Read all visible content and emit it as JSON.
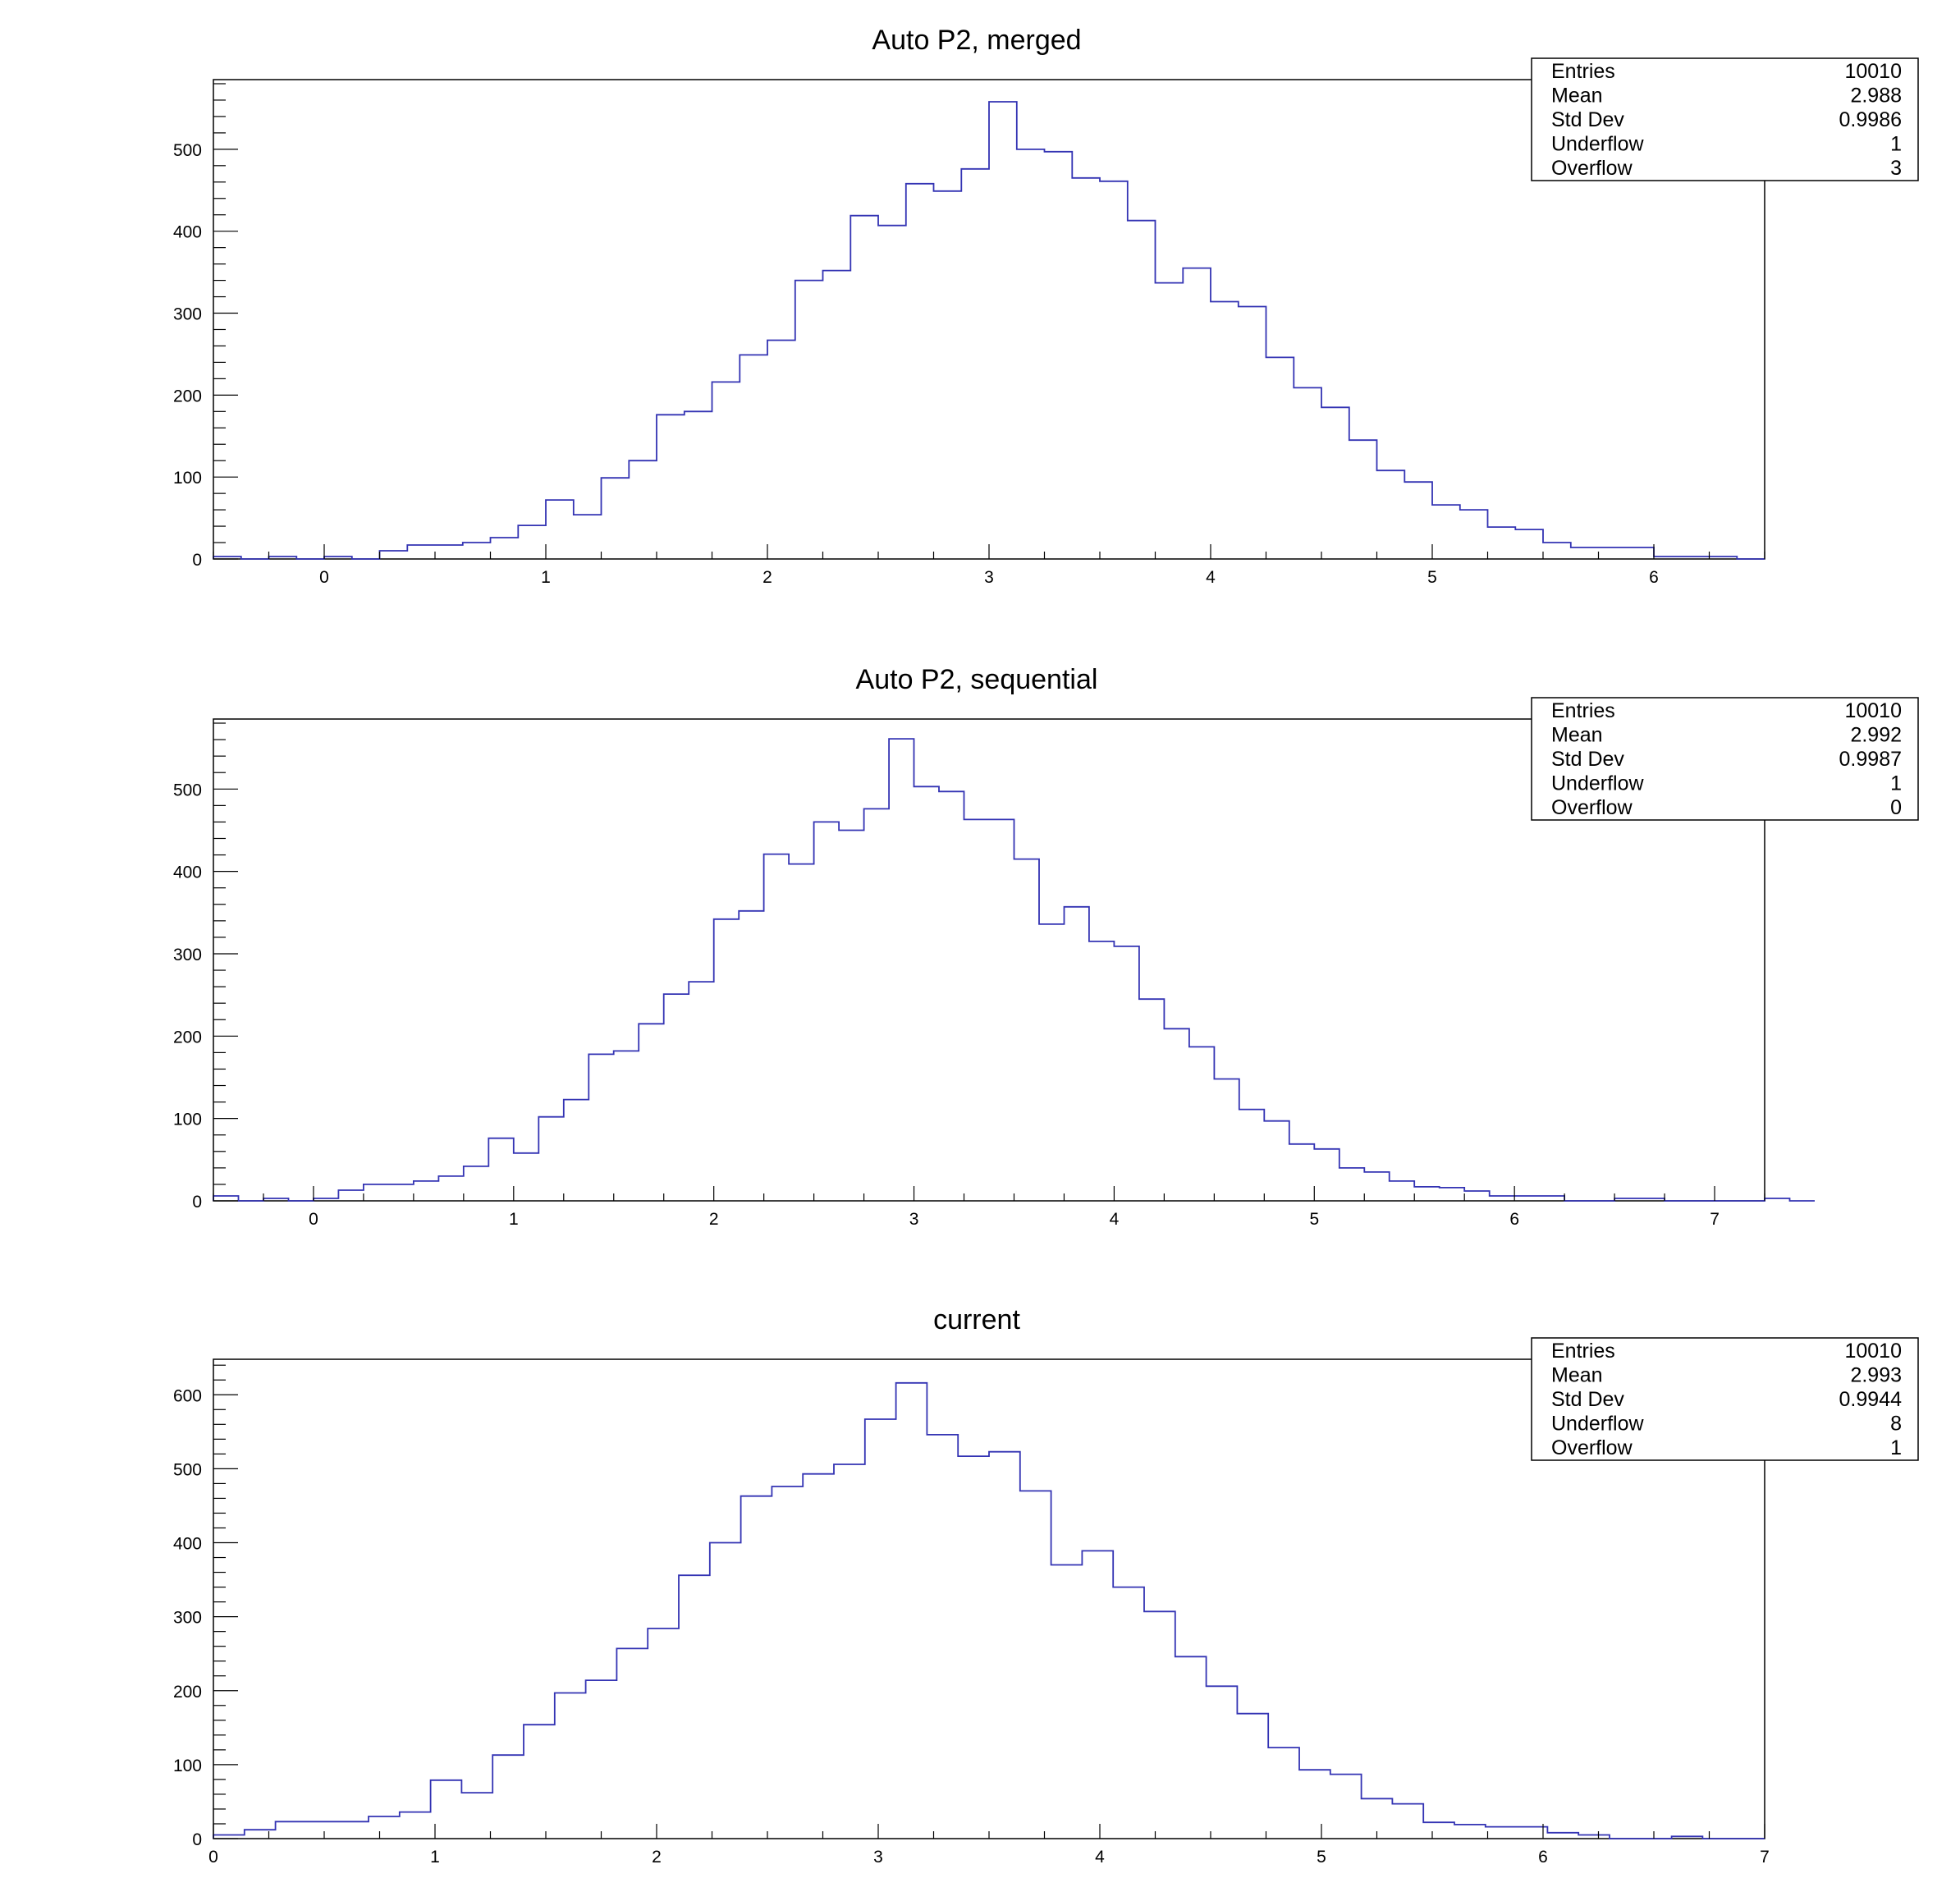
{
  "colors": {
    "line": "#3333b3",
    "frame": "#000000",
    "background": "#ffffff"
  },
  "chart_data": [
    {
      "type": "histogram",
      "title": "Auto P2, merged",
      "xlim": [
        -0.5,
        6.5
      ],
      "ylim": [
        0,
        585
      ],
      "xticks": [
        "0",
        "1",
        "2",
        "3",
        "4",
        "5",
        "6"
      ],
      "yticks": [
        "0",
        "100",
        "200",
        "300",
        "400",
        "500"
      ],
      "bin_start": -0.5,
      "bin_width": 0.125,
      "values": [
        3,
        0,
        3,
        0,
        3,
        0,
        10,
        17,
        17,
        20,
        26,
        41,
        72,
        54,
        99,
        120,
        176,
        180,
        216,
        249,
        267,
        340,
        352,
        419,
        407,
        458,
        449,
        476,
        558,
        500,
        497,
        465,
        461,
        413,
        337,
        355,
        314,
        308,
        246,
        209,
        185,
        145,
        108,
        94,
        66,
        60,
        39,
        36,
        20,
        14,
        14,
        14,
        3,
        3,
        3,
        0
      ],
      "stats": [
        {
          "label": "Entries",
          "value": "10010"
        },
        {
          "label": "Mean",
          "value": "2.988"
        },
        {
          "label": "Std Dev",
          "value": "0.9986"
        },
        {
          "label": "Underflow",
          "value": "1"
        },
        {
          "label": "Overflow",
          "value": "3"
        }
      ]
    },
    {
      "type": "histogram",
      "title": "Auto P2, sequential",
      "xlim": [
        -0.5,
        7.25
      ],
      "ylim": [
        0,
        585
      ],
      "xticks": [
        "0",
        "1",
        "2",
        "3",
        "4",
        "5",
        "6",
        "7"
      ],
      "yticks": [
        "0",
        "100",
        "200",
        "300",
        "400",
        "500"
      ],
      "bin_start": -0.5,
      "bin_width": 0.125,
      "values": [
        6,
        0,
        3,
        0,
        3,
        13,
        20,
        20,
        24,
        30,
        42,
        76,
        58,
        102,
        123,
        178,
        182,
        215,
        251,
        266,
        342,
        352,
        421,
        409,
        460,
        450,
        476,
        561,
        503,
        497,
        463,
        463,
        415,
        336,
        357,
        315,
        309,
        245,
        209,
        187,
        148,
        111,
        97,
        69,
        63,
        40,
        35,
        24,
        17,
        16,
        12,
        6,
        6,
        6,
        0,
        0,
        3,
        3,
        0,
        0,
        0,
        0,
        3,
        0
      ],
      "stats": [
        {
          "label": "Entries",
          "value": "10010"
        },
        {
          "label": "Mean",
          "value": "2.992"
        },
        {
          "label": "Std Dev",
          "value": "0.9987"
        },
        {
          "label": "Underflow",
          "value": "1"
        },
        {
          "label": "Overflow",
          "value": "0"
        }
      ]
    },
    {
      "type": "histogram",
      "title": "current",
      "xlim": [
        0,
        7
      ],
      "ylim": [
        0,
        648
      ],
      "xticks": [
        "0",
        "1",
        "2",
        "3",
        "4",
        "5",
        "6",
        "7"
      ],
      "yticks": [
        "0",
        "100",
        "200",
        "300",
        "400",
        "500",
        "600"
      ],
      "bin_start": 0,
      "bin_width": 0.14,
      "values": [
        5,
        12,
        23,
        23,
        23,
        30,
        36,
        79,
        62,
        113,
        154,
        197,
        214,
        257,
        284,
        356,
        400,
        463,
        476,
        493,
        506,
        567,
        616,
        546,
        517,
        523,
        470,
        370,
        389,
        340,
        307,
        246,
        206,
        169,
        123,
        93,
        87,
        54,
        47,
        22,
        19,
        16,
        16,
        8,
        5,
        0,
        0,
        3,
        0,
        0
      ],
      "stats": [
        {
          "label": "Entries",
          "value": "10010"
        },
        {
          "label": "Mean",
          "value": "2.993"
        },
        {
          "label": "Std Dev",
          "value": "0.9944"
        },
        {
          "label": "Underflow",
          "value": "8"
        },
        {
          "label": "Overflow",
          "value": "1"
        }
      ]
    }
  ]
}
